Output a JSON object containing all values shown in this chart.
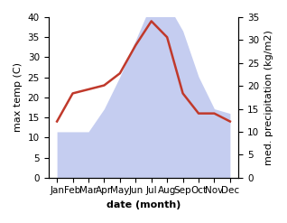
{
  "months": [
    "Jan",
    "Feb",
    "Mar",
    "Apr",
    "May",
    "Jun",
    "Jul",
    "Aug",
    "Sep",
    "Oct",
    "Nov",
    "Dec"
  ],
  "temperature": [
    14,
    21,
    22,
    23,
    26,
    33,
    39,
    35,
    21,
    16,
    16,
    14
  ],
  "precipitation": [
    10,
    10,
    10,
    15,
    22,
    30,
    38,
    38,
    32,
    22,
    15,
    14
  ],
  "temp_color": "#c0392b",
  "precip_fill_color": "#c5cdf0",
  "ylim_left": [
    0,
    40
  ],
  "ylim_right": [
    0,
    35
  ],
  "xlabel": "date (month)",
  "ylabel_left": "max temp (C)",
  "ylabel_right": "med. precipitation (kg/m2)",
  "bg_color": "#ffffff",
  "label_fontsize": 8,
  "tick_fontsize": 7.5
}
